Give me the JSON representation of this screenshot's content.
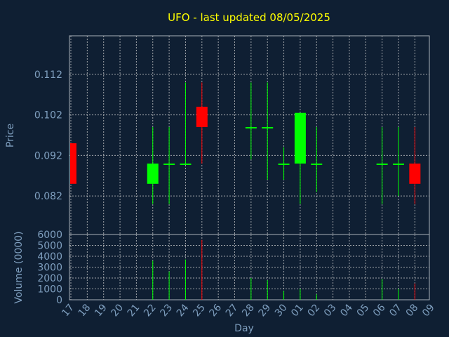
{
  "colors": {
    "background": "#0f1f33",
    "frame": "#aab0b8",
    "grid": "#d0d0d0",
    "text": "#7f9fbf",
    "title": "#ffff00",
    "up": "#00ff00",
    "down": "#ff0000"
  },
  "chart_data": {
    "type": "candlestick",
    "title": "UFO - last updated 08/05/2025",
    "xlabel": "Day",
    "ylabel": "Price",
    "volume_label": "Volume (0000)",
    "grid": true,
    "categories": [
      "17",
      "18",
      "19",
      "20",
      "21",
      "22",
      "23",
      "24",
      "25",
      "26",
      "27",
      "28",
      "29",
      "30",
      "01",
      "02",
      "03",
      "04",
      "05",
      "06",
      "07",
      "08",
      "09"
    ],
    "price_ylim": [
      0.0725,
      0.1215
    ],
    "price_ticks": [
      {
        "value": 0.082,
        "label": "0.082"
      },
      {
        "value": 0.092,
        "label": "0.092"
      },
      {
        "value": 0.102,
        "label": "0.102"
      },
      {
        "value": 0.112,
        "label": "0.112"
      }
    ],
    "volume_ylim": [
      0,
      6000
    ],
    "volume_ticks": [
      {
        "value": 0,
        "label": "0"
      },
      {
        "value": 1000,
        "label": "1000"
      },
      {
        "value": 2000,
        "label": "2000"
      },
      {
        "value": 3000,
        "label": "3000"
      },
      {
        "value": 4000,
        "label": "4000"
      },
      {
        "value": 5000,
        "label": "5000"
      },
      {
        "value": 6000,
        "label": "6000"
      }
    ],
    "candles": [
      {
        "day": "17",
        "open": 0.095,
        "high": 0.095,
        "low": 0.085,
        "close": 0.085,
        "volume": 0
      },
      {
        "day": "22",
        "open": 0.085,
        "high": 0.099,
        "low": 0.08,
        "close": 0.09,
        "volume": 3600
      },
      {
        "day": "23",
        "open": 0.09,
        "high": 0.099,
        "low": 0.08,
        "close": 0.09,
        "volume": 2600
      },
      {
        "day": "24",
        "open": 0.09,
        "high": 0.11,
        "low": 0.09,
        "close": 0.09,
        "volume": 3700
      },
      {
        "day": "25",
        "open": 0.104,
        "high": 0.11,
        "low": 0.09,
        "close": 0.099,
        "volume": 5500
      },
      {
        "day": "28",
        "open": 0.099,
        "high": 0.11,
        "low": 0.091,
        "close": 0.099,
        "volume": 2000
      },
      {
        "day": "29",
        "open": 0.099,
        "high": 0.11,
        "low": 0.086,
        "close": 0.099,
        "volume": 1800
      },
      {
        "day": "30",
        "open": 0.09,
        "high": 0.094,
        "low": 0.086,
        "close": 0.09,
        "volume": 800
      },
      {
        "day": "01",
        "open": 0.09,
        "high": 0.1025,
        "low": 0.08,
        "close": 0.1025,
        "volume": 1000
      },
      {
        "day": "02",
        "open": 0.09,
        "high": 0.099,
        "low": 0.083,
        "close": 0.09,
        "volume": 500
      },
      {
        "day": "06",
        "open": 0.09,
        "high": 0.099,
        "low": 0.08,
        "close": 0.09,
        "volume": 1900
      },
      {
        "day": "07",
        "open": 0.09,
        "high": 0.099,
        "low": 0.082,
        "close": 0.09,
        "volume": 1000
      },
      {
        "day": "08",
        "open": 0.09,
        "high": 0.099,
        "low": 0.08,
        "close": 0.085,
        "volume": 1500
      }
    ]
  }
}
